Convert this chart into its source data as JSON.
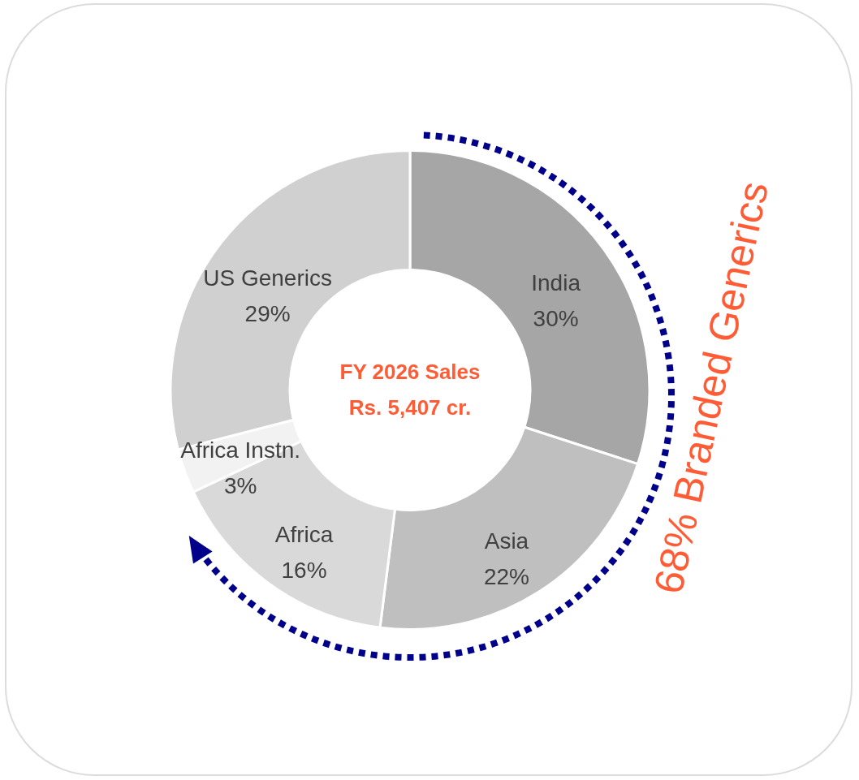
{
  "chart_data": {
    "type": "donut",
    "title": "FY 2026 Sales",
    "subtitle": "Rs. 5,407 cr.",
    "categories": [
      "India",
      "Asia",
      "Africa",
      "Africa Instn.",
      "US Generics"
    ],
    "values": [
      30,
      22,
      16,
      3,
      29
    ],
    "value_labels": [
      "30%",
      "22%",
      "16%",
      "3%",
      "29%"
    ],
    "colors": [
      "#a6a6a6",
      "#bfbfbf",
      "#d9d9d9",
      "#f2f2f2",
      "#d0d0d0"
    ],
    "annotations": [
      "68% Branded Generics"
    ]
  }
}
